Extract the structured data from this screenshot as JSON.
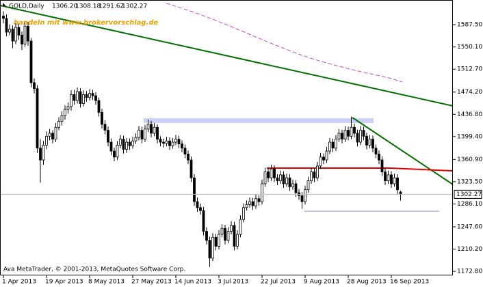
{
  "chart_data": {
    "type": "candlestick",
    "symbol": "GOLD,Daily",
    "last_quote": [
      "1306.20",
      "1308.18",
      "1291.62",
      "1302.27"
    ],
    "watermark": "handeln mit www.brokervorschlag.de",
    "copyright": "Ava MetaTrader, © 2001-2013, MetaQuotes Software Corp.",
    "bull_color": "#ffffff",
    "bear_color": "#000000",
    "ylim": [
      1166,
      1629
    ],
    "yticks": [
      {
        "value": 1587.5,
        "label": "1587.50"
      },
      {
        "value": 1550.1,
        "label": "1550.10"
      },
      {
        "value": 1512.7,
        "label": "1512.70"
      },
      {
        "value": 1474.2,
        "label": "1474.20"
      },
      {
        "value": 1436.8,
        "label": "1436.80"
      },
      {
        "value": 1399.4,
        "label": "1399.40"
      },
      {
        "value": 1360.9,
        "label": "1360.90"
      },
      {
        "value": 1323.5,
        "label": "1323.50"
      },
      {
        "value": 1286.1,
        "label": "1286.10"
      },
      {
        "value": 1247.6,
        "label": "1247.60"
      },
      {
        "value": 1210.2,
        "label": "1210.20"
      },
      {
        "value": 1172.8,
        "label": "1172.80"
      }
    ],
    "categories": [
      "1 Apr 2013",
      null,
      null,
      null,
      null,
      null,
      null,
      null,
      null,
      null,
      null,
      null,
      null,
      null,
      "19 Apr 2013",
      null,
      null,
      null,
      null,
      null,
      null,
      null,
      null,
      null,
      null,
      null,
      null,
      null,
      "8 May 2013",
      null,
      null,
      null,
      null,
      null,
      null,
      null,
      null,
      null,
      null,
      null,
      null,
      null,
      "27 May 2013",
      null,
      null,
      null,
      null,
      null,
      null,
      null,
      null,
      null,
      null,
      null,
      null,
      null,
      "14 Jun 2013",
      null,
      null,
      null,
      null,
      null,
      null,
      null,
      null,
      null,
      null,
      null,
      null,
      null,
      "3 Jul 2013",
      null,
      null,
      null,
      null,
      null,
      null,
      null,
      null,
      null,
      null,
      null,
      null,
      null,
      "22 Jul 2013",
      null,
      null,
      null,
      null,
      null,
      null,
      null,
      null,
      null,
      null,
      null,
      null,
      null,
      "9 Aug 2013",
      null,
      null,
      null,
      null,
      null,
      null,
      null,
      null,
      null,
      null,
      null,
      null,
      null,
      "28 Aug 2013",
      null,
      null,
      null,
      null,
      null,
      null,
      null,
      null,
      null,
      null,
      null,
      null,
      null,
      "16 Sep 2013",
      null,
      null,
      null
    ],
    "ohlc": [
      [
        1602,
        1610,
        1590,
        1598
      ],
      [
        1598,
        1605,
        1568,
        1575
      ],
      [
        1575,
        1588,
        1570,
        1580
      ],
      [
        1580,
        1586,
        1548,
        1560
      ],
      [
        1560,
        1590,
        1555,
        1583
      ],
      [
        1583,
        1590,
        1562,
        1570
      ],
      [
        1570,
        1576,
        1545,
        1555
      ],
      [
        1555,
        1594,
        1550,
        1585
      ],
      [
        1585,
        1592,
        1552,
        1560
      ],
      [
        1560,
        1565,
        1482,
        1490
      ],
      [
        1490,
        1497,
        1472,
        1480
      ],
      [
        1480,
        1486,
        1372,
        1380
      ],
      [
        1380,
        1395,
        1322,
        1360
      ],
      [
        1360,
        1392,
        1352,
        1385
      ],
      [
        1385,
        1408,
        1378,
        1400
      ],
      [
        1400,
        1412,
        1393,
        1405
      ],
      [
        1405,
        1410,
        1388,
        1395
      ],
      [
        1395,
        1422,
        1390,
        1415
      ],
      [
        1415,
        1432,
        1410,
        1425
      ],
      [
        1425,
        1442,
        1418,
        1435
      ],
      [
        1435,
        1452,
        1428,
        1445
      ],
      [
        1445,
        1457,
        1438,
        1450
      ],
      [
        1450,
        1477,
        1443,
        1470
      ],
      [
        1470,
        1478,
        1453,
        1460
      ],
      [
        1460,
        1482,
        1455,
        1475
      ],
      [
        1475,
        1481,
        1448,
        1455
      ],
      [
        1455,
        1477,
        1450,
        1470
      ],
      [
        1470,
        1476,
        1458,
        1465
      ],
      [
        1465,
        1479,
        1460,
        1472
      ],
      [
        1472,
        1478,
        1461,
        1468
      ],
      [
        1468,
        1474,
        1453,
        1460
      ],
      [
        1460,
        1465,
        1433,
        1440
      ],
      [
        1440,
        1446,
        1413,
        1420
      ],
      [
        1420,
        1427,
        1403,
        1410
      ],
      [
        1410,
        1416,
        1383,
        1390
      ],
      [
        1390,
        1396,
        1368,
        1375
      ],
      [
        1375,
        1381,
        1358,
        1365
      ],
      [
        1365,
        1392,
        1360,
        1385
      ],
      [
        1385,
        1402,
        1380,
        1395
      ],
      [
        1395,
        1401,
        1371,
        1378
      ],
      [
        1378,
        1397,
        1372,
        1390
      ],
      [
        1390,
        1396,
        1377,
        1384
      ],
      [
        1384,
        1399,
        1379,
        1392
      ],
      [
        1392,
        1405,
        1387,
        1398
      ],
      [
        1398,
        1417,
        1393,
        1410
      ],
      [
        1410,
        1416,
        1388,
        1395
      ],
      [
        1395,
        1419,
        1390,
        1412
      ],
      [
        1412,
        1428,
        1407,
        1420
      ],
      [
        1420,
        1426,
        1398,
        1405
      ],
      [
        1405,
        1422,
        1400,
        1415
      ],
      [
        1415,
        1420,
        1388,
        1395
      ],
      [
        1395,
        1400,
        1383,
        1390
      ],
      [
        1390,
        1396,
        1381,
        1388
      ],
      [
        1388,
        1399,
        1383,
        1392
      ],
      [
        1392,
        1398,
        1377,
        1384
      ],
      [
        1384,
        1397,
        1379,
        1390
      ],
      [
        1390,
        1402,
        1385,
        1395
      ],
      [
        1395,
        1401,
        1380,
        1387
      ],
      [
        1387,
        1393,
        1373,
        1380
      ],
      [
        1380,
        1386,
        1363,
        1370
      ],
      [
        1370,
        1376,
        1353,
        1360
      ],
      [
        1360,
        1366,
        1323,
        1330
      ],
      [
        1330,
        1336,
        1283,
        1290
      ],
      [
        1290,
        1297,
        1273,
        1280
      ],
      [
        1280,
        1287,
        1268,
        1275
      ],
      [
        1275,
        1281,
        1233,
        1240
      ],
      [
        1240,
        1247,
        1218,
        1225
      ],
      [
        1225,
        1231,
        1180,
        1195
      ],
      [
        1195,
        1237,
        1190,
        1230
      ],
      [
        1230,
        1236,
        1208,
        1215
      ],
      [
        1215,
        1242,
        1210,
        1235
      ],
      [
        1235,
        1252,
        1230,
        1245
      ],
      [
        1245,
        1251,
        1218,
        1225
      ],
      [
        1225,
        1247,
        1220,
        1240
      ],
      [
        1240,
        1257,
        1235,
        1250
      ],
      [
        1250,
        1256,
        1208,
        1215
      ],
      [
        1215,
        1242,
        1210,
        1235
      ],
      [
        1235,
        1267,
        1230,
        1260
      ],
      [
        1260,
        1287,
        1255,
        1280
      ],
      [
        1280,
        1292,
        1275,
        1285
      ],
      [
        1285,
        1297,
        1280,
        1290
      ],
      [
        1290,
        1296,
        1276,
        1283
      ],
      [
        1283,
        1302,
        1278,
        1295
      ],
      [
        1295,
        1301,
        1283,
        1290
      ],
      [
        1290,
        1327,
        1285,
        1320
      ],
      [
        1320,
        1347,
        1315,
        1340
      ],
      [
        1340,
        1346,
        1323,
        1330
      ],
      [
        1330,
        1352,
        1325,
        1345
      ],
      [
        1345,
        1351,
        1323,
        1330
      ],
      [
        1330,
        1336,
        1318,
        1325
      ],
      [
        1325,
        1342,
        1320,
        1335
      ],
      [
        1335,
        1341,
        1313,
        1320
      ],
      [
        1320,
        1337,
        1315,
        1330
      ],
      [
        1330,
        1336,
        1308,
        1315
      ],
      [
        1315,
        1327,
        1310,
        1320
      ],
      [
        1320,
        1326,
        1298,
        1305
      ],
      [
        1305,
        1311,
        1293,
        1300
      ],
      [
        1300,
        1306,
        1278,
        1290
      ],
      [
        1290,
        1317,
        1285,
        1310
      ],
      [
        1310,
        1332,
        1305,
        1325
      ],
      [
        1325,
        1347,
        1320,
        1340
      ],
      [
        1340,
        1346,
        1323,
        1330
      ],
      [
        1330,
        1357,
        1325,
        1350
      ],
      [
        1350,
        1372,
        1345,
        1365
      ],
      [
        1365,
        1371,
        1353,
        1360
      ],
      [
        1360,
        1382,
        1355,
        1375
      ],
      [
        1375,
        1397,
        1370,
        1390
      ],
      [
        1390,
        1396,
        1373,
        1380
      ],
      [
        1380,
        1402,
        1375,
        1395
      ],
      [
        1395,
        1412,
        1390,
        1405
      ],
      [
        1405,
        1411,
        1388,
        1395
      ],
      [
        1395,
        1417,
        1390,
        1410
      ],
      [
        1410,
        1416,
        1393,
        1400
      ],
      [
        1400,
        1433,
        1395,
        1415
      ],
      [
        1415,
        1421,
        1398,
        1405
      ],
      [
        1405,
        1411,
        1383,
        1390
      ],
      [
        1390,
        1417,
        1385,
        1410
      ],
      [
        1410,
        1416,
        1393,
        1400
      ],
      [
        1400,
        1406,
        1378,
        1385
      ],
      [
        1385,
        1402,
        1380,
        1395
      ],
      [
        1395,
        1401,
        1373,
        1380
      ],
      [
        1380,
        1386,
        1363,
        1370
      ],
      [
        1370,
        1376,
        1353,
        1360
      ],
      [
        1360,
        1366,
        1333,
        1340
      ],
      [
        1340,
        1346,
        1318,
        1325
      ],
      [
        1325,
        1342,
        1320,
        1335
      ],
      [
        1335,
        1341,
        1313,
        1320
      ],
      [
        1320,
        1337,
        1315,
        1330
      ],
      [
        1330,
        1336,
        1303,
        1310
      ],
      [
        1306.2,
        1308.18,
        1291.62,
        1302.27
      ]
    ]
  }
}
